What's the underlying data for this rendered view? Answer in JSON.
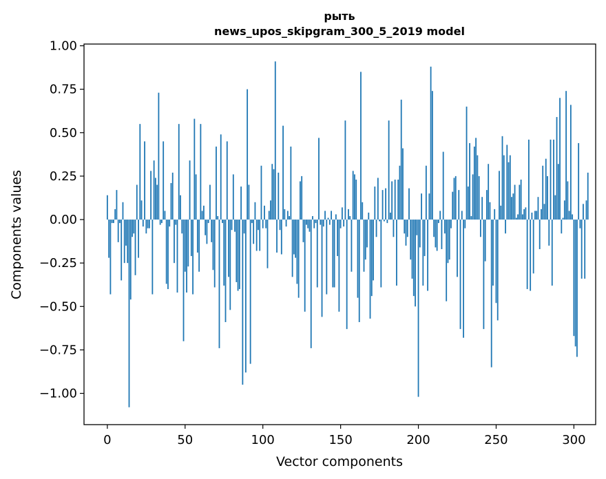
{
  "chart_data": {
    "type": "bar",
    "title": "рыть",
    "subtitle": "news_upos_skipgram_300_5_2019 model",
    "xlabel": "Vector components",
    "ylabel": "Components values",
    "xlim": [
      -15,
      314
    ],
    "ylim": [
      -1.18,
      1.01
    ],
    "xticks": [
      0,
      50,
      100,
      150,
      200,
      250,
      300
    ],
    "yticks": [
      1.0,
      0.75,
      0.5,
      0.25,
      0.0,
      -0.25,
      -0.5,
      -0.75,
      -1.0
    ],
    "ytick_labels": [
      "1.00",
      "0.75",
      "0.50",
      "0.25",
      "0.00",
      "−0.25",
      "−0.50",
      "−0.75",
      "−1.00"
    ],
    "bar_color": "#1f77b4",
    "values": [
      0.14,
      -0.22,
      -0.43,
      -0.02,
      -0.02,
      0.06,
      0.17,
      -0.13,
      -0.02,
      -0.35,
      0.1,
      -0.25,
      -0.15,
      -0.25,
      -1.08,
      -0.46,
      -0.1,
      -0.08,
      -0.32,
      0.2,
      -0.22,
      0.55,
      0.11,
      -0.04,
      0.45,
      -0.08,
      -0.05,
      -0.05,
      0.28,
      -0.43,
      0.34,
      0.24,
      0.2,
      0.73,
      -0.03,
      -0.02,
      0.45,
      0.05,
      -0.37,
      -0.4,
      -0.04,
      0.21,
      0.27,
      -0.25,
      -0.03,
      -0.42,
      0.55,
      0.14,
      -0.08,
      -0.7,
      -0.3,
      -0.42,
      -0.27,
      0.34,
      -0.21,
      -0.43,
      0.58,
      0.26,
      -0.19,
      -0.3,
      0.55,
      0.05,
      0.08,
      -0.09,
      -0.14,
      -0.02,
      0.2,
      -0.13,
      -0.29,
      -0.39,
      0.42,
      0.02,
      -0.74,
      0.49,
      -0.02,
      -0.38,
      -0.59,
      0.45,
      -0.33,
      -0.52,
      -0.06,
      0.26,
      -0.07,
      -0.36,
      -0.41,
      -0.4,
      0.19,
      -0.95,
      -0.08,
      -0.88,
      0.75,
      0.2,
      -0.83,
      -0.02,
      -0.14,
      0.1,
      -0.18,
      -0.06,
      -0.18,
      0.31,
      -0.05,
      0.08,
      -0.05,
      -0.28,
      0.05,
      0.11,
      0.32,
      0.29,
      0.91,
      -0.19,
      0.27,
      -0.06,
      -0.2,
      0.54,
      0.06,
      -0.04,
      0.05,
      0.02,
      0.42,
      -0.33,
      -0.2,
      -0.22,
      -0.37,
      -0.45,
      0.22,
      0.25,
      -0.13,
      -0.53,
      -0.03,
      -0.05,
      -0.07,
      -0.74,
      0.02,
      -0.05,
      -0.02,
      -0.39,
      0.47,
      -0.03,
      -0.56,
      -0.04,
      0.05,
      -0.43,
      0.01,
      -0.03,
      0.05,
      -0.39,
      -0.39,
      0.03,
      -0.21,
      -0.53,
      -0.05,
      0.07,
      -0.04,
      0.57,
      -0.63,
      0.06,
      0.02,
      -0.3,
      0.28,
      0.26,
      0.23,
      -0.45,
      -0.59,
      0.85,
      0.1,
      -0.3,
      -0.23,
      -0.16,
      0.04,
      -0.57,
      -0.44,
      -0.35,
      0.19,
      -0.1,
      0.24,
      -0.01,
      -0.39,
      0.17,
      -0.01,
      0.18,
      -0.02,
      0.57,
      0.04,
      0.22,
      -0.1,
      0.23,
      -0.38,
      0.23,
      0.31,
      0.69,
      0.41,
      -0.08,
      -0.15,
      -0.1,
      0.18,
      -0.23,
      -0.34,
      -0.44,
      -0.5,
      -0.09,
      -1.02,
      -0.16,
      0.15,
      -0.38,
      -0.21,
      0.31,
      -0.41,
      0.15,
      0.88,
      0.74,
      -0.1,
      -0.16,
      -0.18,
      -0.02,
      0.05,
      -0.17,
      0.39,
      -0.08,
      -0.47,
      -0.25,
      -0.23,
      -0.05,
      0.16,
      0.24,
      0.25,
      -0.33,
      0.17,
      -0.63,
      0.05,
      -0.68,
      -0.05,
      0.65,
      0.19,
      0.44,
      0.02,
      0.26,
      0.42,
      0.47,
      0.37,
      0.25,
      -0.1,
      0.13,
      -0.63,
      -0.24,
      0.17,
      0.32,
      0.1,
      -0.85,
      -0.38,
      0.06,
      -0.48,
      -0.58,
      0.28,
      0.08,
      0.48,
      0.37,
      -0.08,
      0.43,
      0.33,
      0.37,
      0.13,
      0.15,
      0.2,
      0.01,
      0.03,
      0.2,
      0.23,
      0.03,
      0.06,
      0.07,
      -0.4,
      0.46,
      -0.41,
      0.04,
      -0.31,
      0.05,
      0.05,
      0.13,
      -0.17,
      0.06,
      0.31,
      0.09,
      0.35,
      0.25,
      -0.15,
      0.46,
      -0.38,
      0.46,
      0.14,
      0.59,
      0.32,
      0.7,
      -0.08,
      0.01,
      0.11,
      0.74,
      0.22,
      0.05,
      0.66,
      0.03,
      -0.67,
      -0.73,
      -0.79,
      0.44,
      -0.05,
      -0.34,
      0.09,
      -0.34,
      0.11,
      0.27
    ]
  }
}
